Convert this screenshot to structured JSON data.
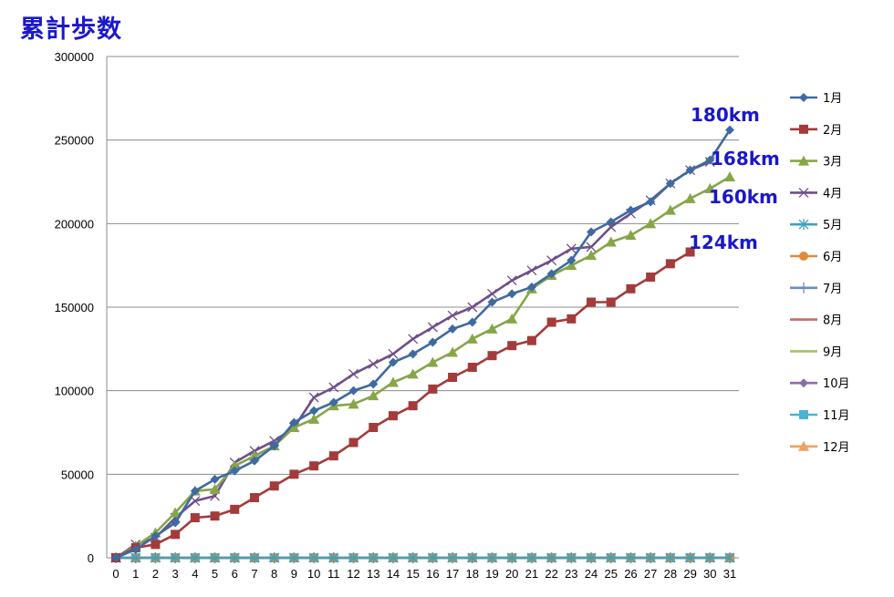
{
  "chart_data": {
    "type": "line",
    "title": "累計歩数",
    "xlabel": "",
    "ylabel": "",
    "x": [
      0,
      1,
      2,
      3,
      4,
      5,
      6,
      7,
      8,
      9,
      10,
      11,
      12,
      13,
      14,
      15,
      16,
      17,
      18,
      19,
      20,
      21,
      22,
      23,
      24,
      25,
      26,
      27,
      28,
      29,
      30,
      31
    ],
    "xlim": [
      0,
      31
    ],
    "ylim": [
      0,
      300000
    ],
    "yticks": [
      0,
      50000,
      100000,
      150000,
      200000,
      250000,
      300000
    ],
    "grid": "horizontal",
    "legend_position": "right",
    "series": [
      {
        "name": "1月",
        "color": "#3f6aa0",
        "marker": "diamond",
        "values": [
          0,
          5000,
          13000,
          21000,
          40000,
          47000,
          52000,
          58000,
          67000,
          81000,
          88000,
          93000,
          100000,
          104000,
          117000,
          122000,
          129000,
          137000,
          141000,
          153000,
          158000,
          162000,
          170000,
          178000,
          195000,
          201000,
          208000,
          213000,
          224000,
          232000,
          238000,
          256000
        ]
      },
      {
        "name": "2月",
        "color": "#a33b3b",
        "marker": "square",
        "values": [
          0,
          6000,
          8000,
          14000,
          24000,
          25000,
          29000,
          36000,
          43000,
          50000,
          55000,
          61000,
          69000,
          78000,
          85000,
          91000,
          101000,
          108000,
          114000,
          121000,
          127000,
          130000,
          141000,
          143000,
          153000,
          153000,
          161000,
          168000,
          176000,
          183000,
          null,
          null
        ]
      },
      {
        "name": "3月",
        "color": "#86a648",
        "marker": "triangle",
        "values": [
          0,
          7000,
          15000,
          27000,
          40000,
          41000,
          55000,
          61000,
          67000,
          78000,
          83000,
          91000,
          92000,
          97000,
          105000,
          110000,
          117000,
          123000,
          131000,
          137000,
          143000,
          161000,
          169000,
          175000,
          181000,
          189000,
          193000,
          200000,
          208000,
          215000,
          221000,
          228000
        ]
      },
      {
        "name": "4月",
        "color": "#6e4f8a",
        "marker": "x",
        "values": [
          0,
          8000,
          12000,
          24000,
          34000,
          37000,
          57000,
          64000,
          70000,
          78000,
          96000,
          102000,
          110000,
          116000,
          122000,
          131000,
          138000,
          145000,
          150000,
          158000,
          166000,
          172000,
          178000,
          185000,
          186000,
          198000,
          206000,
          214000,
          224000,
          232000,
          237000,
          null
        ]
      },
      {
        "name": "5月",
        "color": "#3fa2bc",
        "marker": "star",
        "values": [
          0,
          0,
          0,
          0,
          0,
          0,
          0,
          0,
          0,
          0,
          0,
          0,
          0,
          0,
          0,
          0,
          0,
          0,
          0,
          0,
          0,
          0,
          0,
          0,
          0,
          0,
          0,
          0,
          0,
          0,
          0,
          0
        ]
      },
      {
        "name": "6月",
        "color": "#e08a3c",
        "marker": "circle",
        "values": [
          0,
          0,
          0,
          0,
          0,
          0,
          0,
          0,
          0,
          0,
          0,
          0,
          0,
          0,
          0,
          0,
          0,
          0,
          0,
          0,
          0,
          0,
          0,
          0,
          0,
          0,
          0,
          0,
          0,
          0,
          0,
          0
        ]
      },
      {
        "name": "7月",
        "color": "#6a8bc2",
        "marker": "plus",
        "values": [
          0,
          0,
          0,
          0,
          0,
          0,
          0,
          0,
          0,
          0,
          0,
          0,
          0,
          0,
          0,
          0,
          0,
          0,
          0,
          0,
          0,
          0,
          0,
          0,
          0,
          0,
          0,
          0,
          0,
          0,
          0,
          0
        ]
      },
      {
        "name": "8月",
        "color": "#c66a6a",
        "marker": "dash",
        "values": [
          0,
          0,
          0,
          0,
          0,
          0,
          0,
          0,
          0,
          0,
          0,
          0,
          0,
          0,
          0,
          0,
          0,
          0,
          0,
          0,
          0,
          0,
          0,
          0,
          0,
          0,
          0,
          0,
          0,
          0,
          0,
          0
        ]
      },
      {
        "name": "9月",
        "color": "#a5c46a",
        "marker": "dash",
        "values": [
          0,
          0,
          0,
          0,
          0,
          0,
          0,
          0,
          0,
          0,
          0,
          0,
          0,
          0,
          0,
          0,
          0,
          0,
          0,
          0,
          0,
          0,
          0,
          0,
          0,
          0,
          0,
          0,
          0,
          0,
          0,
          0
        ]
      },
      {
        "name": "10月",
        "color": "#8a6aae",
        "marker": "diamond",
        "values": [
          0,
          0,
          0,
          0,
          0,
          0,
          0,
          0,
          0,
          0,
          0,
          0,
          0,
          0,
          0,
          0,
          0,
          0,
          0,
          0,
          0,
          0,
          0,
          0,
          0,
          0,
          0,
          0,
          0,
          0,
          0,
          0
        ]
      },
      {
        "name": "11月",
        "color": "#4bb3cf",
        "marker": "square",
        "values": [
          0,
          0,
          0,
          0,
          0,
          0,
          0,
          0,
          0,
          0,
          0,
          0,
          0,
          0,
          0,
          0,
          0,
          0,
          0,
          0,
          0,
          0,
          0,
          0,
          0,
          0,
          0,
          0,
          0,
          0,
          0,
          0
        ]
      },
      {
        "name": "12月",
        "color": "#f0a060",
        "marker": "triangle",
        "values": [
          0,
          0,
          0,
          0,
          0,
          0,
          0,
          0,
          0,
          0,
          0,
          0,
          0,
          0,
          0,
          0,
          0,
          0,
          0,
          0,
          0,
          0,
          0,
          0,
          0,
          0,
          0,
          0,
          0,
          0,
          0,
          0
        ]
      }
    ],
    "annotations": [
      {
        "text": "180km",
        "x": 31,
        "y": 256000
      },
      {
        "text": "168km",
        "x": 31,
        "y": 237000
      },
      {
        "text": "160km",
        "x": 31,
        "y": 228000
      },
      {
        "text": "124km",
        "x": 29,
        "y": 183000
      }
    ]
  }
}
